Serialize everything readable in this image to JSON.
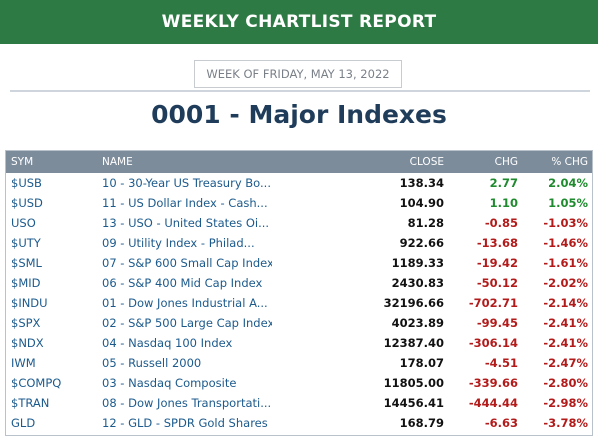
{
  "header": {
    "title": "WEEKLY CHARTLIST REPORT"
  },
  "week_label": "WEEK OF FRIDAY, MAY 13, 2022",
  "list_title": "0001 - Major Indexes",
  "table": {
    "columns": [
      "SYM",
      "NAME",
      "CLOSE",
      "CHG",
      "% CHG"
    ],
    "rows": [
      {
        "sym": "$USB",
        "name": "10 - 30-Year US Treasury Bo...",
        "close": "138.34",
        "chg": "2.77",
        "pct": "2.04%",
        "dir": "pos"
      },
      {
        "sym": "$USD",
        "name": "11 - US Dollar Index - Cash...",
        "close": "104.90",
        "chg": "1.10",
        "pct": "1.05%",
        "dir": "pos"
      },
      {
        "sym": "USO",
        "name": "13 - USO - United States Oi...",
        "close": "81.28",
        "chg": "-0.85",
        "pct": "-1.03%",
        "dir": "neg"
      },
      {
        "sym": "$UTY",
        "name": "09 - Utility Index - Philad...",
        "close": "922.66",
        "chg": "-13.68",
        "pct": "-1.46%",
        "dir": "neg"
      },
      {
        "sym": "$SML",
        "name": "07 - S&P 600 Small Cap Index",
        "close": "1189.33",
        "chg": "-19.42",
        "pct": "-1.61%",
        "dir": "neg"
      },
      {
        "sym": "$MID",
        "name": "06 - S&P 400 Mid Cap Index",
        "close": "2430.83",
        "chg": "-50.12",
        "pct": "-2.02%",
        "dir": "neg"
      },
      {
        "sym": "$INDU",
        "name": "01 - Dow Jones Industrial A...",
        "close": "32196.66",
        "chg": "-702.71",
        "pct": "-2.14%",
        "dir": "neg"
      },
      {
        "sym": "$SPX",
        "name": "02 - S&P 500 Large Cap Index",
        "close": "4023.89",
        "chg": "-99.45",
        "pct": "-2.41%",
        "dir": "neg"
      },
      {
        "sym": "$NDX",
        "name": "04 - Nasdaq 100 Index",
        "close": "12387.40",
        "chg": "-306.14",
        "pct": "-2.41%",
        "dir": "neg"
      },
      {
        "sym": "IWM",
        "name": "05 - Russell 2000",
        "close": "178.07",
        "chg": "-4.51",
        "pct": "-2.47%",
        "dir": "neg"
      },
      {
        "sym": "$COMPQ",
        "name": "03 - Nasdaq Composite",
        "close": "11805.00",
        "chg": "-339.66",
        "pct": "-2.80%",
        "dir": "neg"
      },
      {
        "sym": "$TRAN",
        "name": "08 - Dow Jones Transportati...",
        "close": "14456.41",
        "chg": "-444.44",
        "pct": "-2.98%",
        "dir": "neg"
      },
      {
        "sym": "GLD",
        "name": "12 - GLD - SPDR Gold Shares",
        "close": "168.79",
        "chg": "-6.63",
        "pct": "-3.78%",
        "dir": "neg"
      }
    ]
  },
  "colors": {
    "banner": "#2e7a45",
    "positive": "#1f8a2e",
    "negative": "#b31b1b",
    "link": "#1c5a8c",
    "header_row": "#7d8c9b"
  }
}
